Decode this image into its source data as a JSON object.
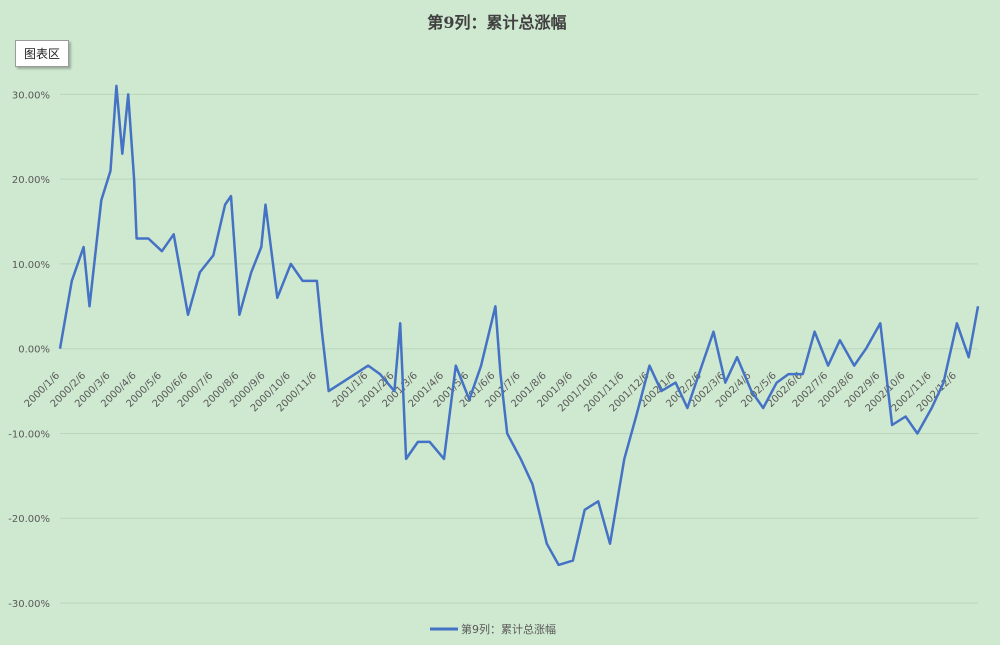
{
  "ui": {
    "area_badge": "图表区"
  },
  "chart_data": {
    "type": "line",
    "title": "第9列：累计总涨幅",
    "xlabel": "",
    "ylabel": "",
    "ylim": [
      -0.3,
      0.35
    ],
    "y_ticks": [
      {
        "value": 0.3,
        "label": "30.00%"
      },
      {
        "value": 0.2,
        "label": "20.00%"
      },
      {
        "value": 0.1,
        "label": "10.00%"
      },
      {
        "value": 0.0,
        "label": "0.00%"
      },
      {
        "value": -0.1,
        "label": "-10.00%"
      },
      {
        "value": -0.2,
        "label": "-20.00%"
      },
      {
        "value": -0.3,
        "label": "-30.00%"
      }
    ],
    "x_tick_labels": [
      "2000/1/6",
      "2000/2/6",
      "2000/3/6",
      "2000/4/6",
      "2000/5/6",
      "2000/6/6",
      "2000/7/6",
      "2000/8/6",
      "2000/9/6",
      "2000/10/6",
      "2000/11/6",
      "2001/1/6",
      "2001/2/6",
      "2001/3/6",
      "2001/4/6",
      "2001/5/6",
      "2001/6/6",
      "2001/7/6",
      "2001/8/6",
      "2001/9/6",
      "2001/10/6",
      "2001/11/6",
      "2001/12/6",
      "2002/1/6",
      "2002/2/6",
      "2002/3/6",
      "2002/4/6",
      "2002/5/6",
      "2002/6/6",
      "2002/7/6",
      "2002/8/6",
      "2002/9/6",
      "2002/10/6",
      "2002/11/6",
      "2002/12/6"
    ],
    "grid": true,
    "legend_position": "bottom",
    "colors": {
      "series": "#4472c4",
      "background": "#cfe8d0",
      "grid": "#b9d6ba"
    },
    "series": [
      {
        "name": "第9列：累计总涨幅",
        "x": [
          "2000/1/6",
          "2000/1/20",
          "2000/2/3",
          "2000/2/10",
          "2000/2/24",
          "2000/3/6",
          "2000/3/13",
          "2000/3/20",
          "2000/3/27",
          "2000/4/3",
          "2000/4/6",
          "2000/4/20",
          "2000/5/6",
          "2000/5/20",
          "2000/6/6",
          "2000/6/20",
          "2000/7/6",
          "2000/7/20",
          "2000/7/27",
          "2000/8/6",
          "2000/8/20",
          "2000/9/1",
          "2000/9/6",
          "2000/9/20",
          "2000/10/6",
          "2000/10/20",
          "2000/11/6",
          "2000/11/12",
          "2000/11/20",
          "2001/1/6",
          "2001/1/20",
          "2001/2/6",
          "2001/2/13",
          "2001/2/20",
          "2001/3/6",
          "2001/3/20",
          "2001/4/6",
          "2001/4/20",
          "2001/5/6",
          "2001/5/20",
          "2001/6/6",
          "2001/6/12",
          "2001/6/20",
          "2001/7/6",
          "2001/7/20",
          "2001/8/6",
          "2001/8/20",
          "2001/9/6",
          "2001/9/20",
          "2001/10/6",
          "2001/10/20",
          "2001/11/6",
          "2001/11/20",
          "2001/12/6",
          "2001/12/20",
          "2002/1/6",
          "2002/1/20",
          "2002/2/6",
          "2002/2/20",
          "2002/3/6",
          "2002/3/20",
          "2002/4/6",
          "2002/4/20",
          "2002/5/6",
          "2002/5/20",
          "2002/6/6",
          "2002/6/20",
          "2002/7/6",
          "2002/7/20",
          "2002/8/6",
          "2002/8/20",
          "2002/9/6",
          "2002/9/20",
          "2002/10/6",
          "2002/10/20",
          "2002/11/6",
          "2002/11/20",
          "2002/12/6",
          "2002/12/20",
          "2002/12/31"
        ],
        "values": [
          0.0,
          0.08,
          0.12,
          0.05,
          0.175,
          0.21,
          0.31,
          0.23,
          0.3,
          0.2,
          0.13,
          0.13,
          0.115,
          0.135,
          0.04,
          0.09,
          0.11,
          0.17,
          0.18,
          0.04,
          0.09,
          0.12,
          0.17,
          0.06,
          0.1,
          0.08,
          0.08,
          0.02,
          -0.05,
          -0.02,
          -0.03,
          -0.05,
          0.03,
          -0.13,
          -0.11,
          -0.11,
          -0.13,
          -0.02,
          -0.06,
          -0.02,
          0.05,
          -0.03,
          -0.1,
          -0.13,
          -0.16,
          -0.23,
          -0.255,
          -0.25,
          -0.19,
          -0.18,
          -0.23,
          -0.13,
          -0.08,
          -0.02,
          -0.05,
          -0.04,
          -0.07,
          -0.02,
          0.02,
          -0.04,
          -0.01,
          -0.05,
          -0.07,
          -0.04,
          -0.03,
          -0.03,
          0.02,
          -0.02,
          0.01,
          -0.02,
          0.0,
          0.03,
          -0.09,
          -0.08,
          -0.1,
          -0.07,
          -0.04,
          0.03,
          -0.01,
          0.05
        ]
      }
    ]
  }
}
